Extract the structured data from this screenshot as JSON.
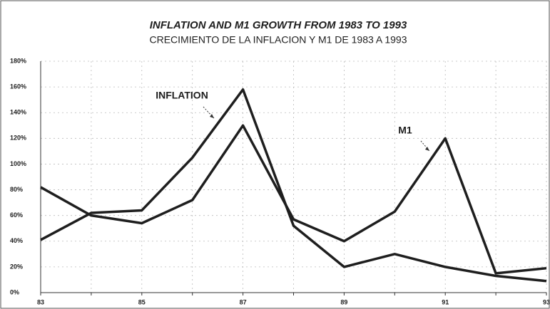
{
  "chart_data": {
    "type": "line",
    "title": "INFLATION AND M1 GROWTH FROM 1983 TO 1993",
    "subtitle": "CRECIMIENTO DE LA INFLACION Y M1 DE 1983 A 1993",
    "categories": [
      "83",
      null,
      "85",
      null,
      "87",
      null,
      "89",
      null,
      "91",
      null,
      "93"
    ],
    "series": [
      {
        "name": "INFLATION",
        "color": "#1e1e1e",
        "values": [
          41,
          62,
          64,
          105,
          158,
          52,
          20,
          30,
          20,
          13,
          9
        ]
      },
      {
        "name": "M1",
        "color": "#1e1e1e",
        "values": [
          82,
          60,
          54,
          72,
          130,
          57,
          40,
          63,
          120,
          15,
          19
        ]
      }
    ],
    "ylim": [
      0,
      180
    ],
    "yticks": [
      {
        "value": 0,
        "label": "0%"
      },
      {
        "value": 20,
        "label": "20%"
      },
      {
        "value": 40,
        "label": "40%"
      },
      {
        "value": 60,
        "label": "60%"
      },
      {
        "value": 80,
        "label": "80%"
      },
      {
        "value": 100,
        "label": "100%"
      },
      {
        "value": 120,
        "label": "120%"
      },
      {
        "value": 140,
        "label": "140%"
      },
      {
        "value": 160,
        "label": "160%"
      },
      {
        "value": 180,
        "label": "180%"
      }
    ],
    "grid": true
  }
}
